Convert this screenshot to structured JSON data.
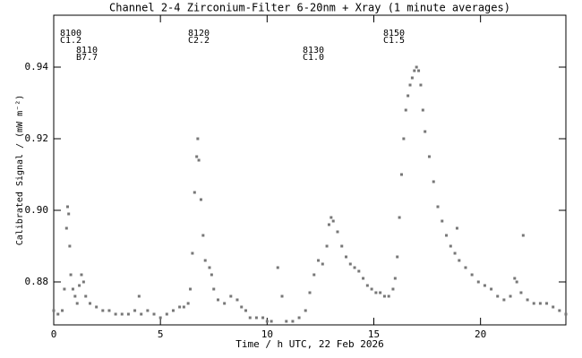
{
  "chart_data": {
    "type": "scatter",
    "title": "Channel 2-4   Zirconium-Filter   6-20nm + Xray   (1 minute averages)",
    "xlabel": "Time / h UTC, 22 Feb 2026",
    "ylabel": "Calibrated Signal / (mW m⁻²)",
    "color": "#777777",
    "xlim": [
      0,
      24
    ],
    "ylim": [
      0.868,
      0.9545
    ],
    "xticks": [
      0,
      5,
      10,
      15,
      20
    ],
    "yticks": [
      0.88,
      {
        "value": 0.9,
        "label": "0.90"
      },
      0.92,
      0.94
    ],
    "annotations": [
      [
        "8100",
        "C1.2"
      ],
      [
        "8110",
        "B7.7"
      ],
      [
        "8120",
        "C2.2"
      ],
      [
        "8130",
        "C1.0"
      ],
      [
        "8150",
        "C1.5"
      ]
    ],
    "x": [
      0.0,
      0.2,
      0.4,
      0.5,
      0.6,
      0.65,
      0.7,
      0.75,
      0.8,
      0.9,
      1.0,
      1.1,
      1.2,
      1.3,
      1.4,
      1.5,
      1.7,
      2.0,
      2.3,
      2.6,
      2.9,
      3.2,
      3.5,
      3.8,
      4.0,
      4.1,
      4.4,
      4.7,
      5.0,
      5.3,
      5.6,
      5.9,
      6.1,
      6.3,
      6.4,
      6.5,
      6.6,
      6.7,
      6.75,
      6.8,
      6.9,
      7.0,
      7.1,
      7.3,
      7.4,
      7.5,
      7.7,
      8.0,
      8.3,
      8.6,
      8.8,
      9.0,
      9.2,
      9.5,
      9.8,
      10.0,
      10.2,
      10.5,
      10.7,
      10.9,
      11.2,
      11.5,
      11.8,
      12.0,
      12.2,
      12.4,
      12.6,
      12.8,
      12.9,
      13.0,
      13.1,
      13.3,
      13.5,
      13.7,
      13.9,
      14.1,
      14.3,
      14.5,
      14.7,
      14.9,
      15.1,
      15.3,
      15.5,
      15.7,
      15.9,
      16.0,
      16.1,
      16.2,
      16.3,
      16.4,
      16.5,
      16.6,
      16.7,
      16.8,
      16.9,
      17.0,
      17.1,
      17.2,
      17.3,
      17.4,
      17.6,
      17.8,
      18.0,
      18.2,
      18.4,
      18.6,
      18.8,
      18.9,
      19.0,
      19.3,
      19.6,
      19.9,
      20.2,
      20.5,
      20.8,
      21.1,
      21.4,
      21.6,
      21.7,
      21.9,
      22.0,
      22.2,
      22.5,
      22.8,
      23.1,
      23.4,
      23.7,
      24.0
    ],
    "values": [
      0.872,
      0.871,
      0.872,
      0.878,
      0.895,
      0.901,
      0.899,
      0.89,
      0.882,
      0.878,
      0.876,
      0.874,
      0.879,
      0.882,
      0.88,
      0.876,
      0.874,
      0.873,
      0.872,
      0.872,
      0.871,
      0.871,
      0.871,
      0.872,
      0.876,
      0.871,
      0.872,
      0.871,
      0.87,
      0.871,
      0.872,
      0.873,
      0.873,
      0.874,
      0.878,
      0.888,
      0.905,
      0.915,
      0.92,
      0.914,
      0.903,
      0.893,
      0.886,
      0.884,
      0.882,
      0.878,
      0.875,
      0.874,
      0.876,
      0.875,
      0.873,
      0.872,
      0.87,
      0.87,
      0.87,
      0.869,
      0.869,
      0.884,
      0.876,
      0.869,
      0.869,
      0.87,
      0.872,
      0.877,
      0.882,
      0.886,
      0.885,
      0.89,
      0.896,
      0.898,
      0.897,
      0.894,
      0.89,
      0.887,
      0.885,
      0.884,
      0.883,
      0.881,
      0.879,
      0.878,
      0.877,
      0.877,
      0.876,
      0.876,
      0.878,
      0.881,
      0.887,
      0.898,
      0.91,
      0.92,
      0.928,
      0.932,
      0.935,
      0.937,
      0.939,
      0.94,
      0.939,
      0.935,
      0.928,
      0.922,
      0.915,
      0.908,
      0.901,
      0.897,
      0.893,
      0.89,
      0.888,
      0.895,
      0.886,
      0.884,
      0.882,
      0.88,
      0.879,
      0.878,
      0.876,
      0.875,
      0.876,
      0.881,
      0.88,
      0.877,
      0.893,
      0.875,
      0.874,
      0.874,
      0.874,
      0.873,
      0.872,
      0.871
    ]
  }
}
